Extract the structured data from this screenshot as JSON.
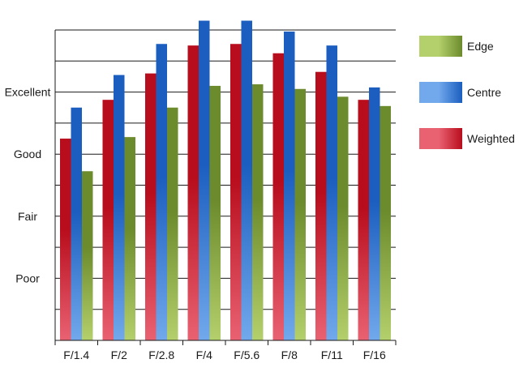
{
  "chart_data": {
    "type": "bar",
    "title": "",
    "xlabel": "",
    "ylabel": "",
    "categories": [
      "F/1.4",
      "F/2",
      "F/2.8",
      "F/4",
      "F/5.6",
      "F/8",
      "F/11",
      "F/16"
    ],
    "y_tick_labels": [
      {
        "label": "Poor",
        "value": 2
      },
      {
        "label": "Fair",
        "value": 4
      },
      {
        "label": "Good",
        "value": 6
      },
      {
        "label": "Excellent",
        "value": 8
      }
    ],
    "ylim": [
      0,
      10
    ],
    "grid": true,
    "legend_position": "right",
    "series": [
      {
        "name": "Weighted",
        "key": "weighted",
        "values": [
          6.5,
          7.75,
          8.6,
          9.5,
          9.55,
          9.25,
          8.65,
          7.75
        ]
      },
      {
        "name": "Centre",
        "key": "centre",
        "values": [
          7.5,
          8.55,
          9.55,
          10.3,
          10.3,
          9.95,
          9.5,
          8.15
        ]
      },
      {
        "name": "Edge",
        "key": "edge",
        "values": [
          5.45,
          6.55,
          7.5,
          8.2,
          8.25,
          8.1,
          7.85,
          7.55
        ]
      }
    ],
    "legend_order": [
      "Edge",
      "Centre",
      "Weighted"
    ],
    "colors": {
      "weighted": {
        "dark": "#b80d1c",
        "light": "#e96272"
      },
      "centre": {
        "dark": "#1b5ebf",
        "light": "#72a9ec"
      },
      "edge": {
        "dark": "#6c8b2c",
        "light": "#b4d06c"
      },
      "grid": "#1a1a1a"
    }
  }
}
